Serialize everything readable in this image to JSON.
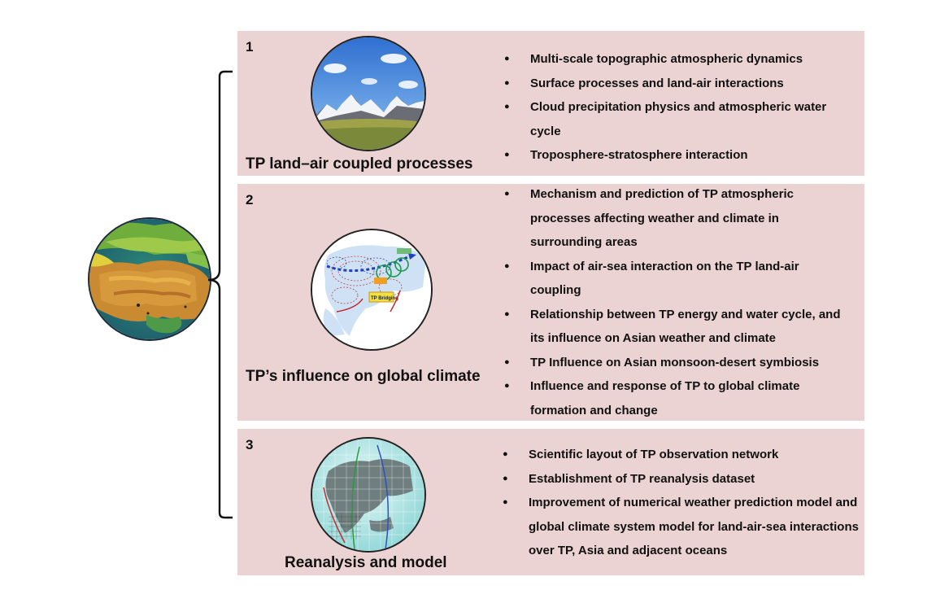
{
  "panels": [
    {
      "number": "1",
      "title": "TP land–air coupled processes",
      "bullets": [
        "Multi-scale topographic atmospheric dynamics",
        "Surface processes and land-air interactions",
        "Cloud precipitation physics and atmospheric water cycle",
        "Troposphere-stratosphere interaction"
      ]
    },
    {
      "number": "2",
      "title": "TP’s influence on global climate",
      "bullets": [
        "Mechanism and prediction of TP atmospheric processes affecting weather and climate in surrounding areas",
        "Impact of air-sea interaction on the TP land-air coupling",
        "Relationship between TP energy and water cycle, and its influence on Asian weather and climate",
        "TP Influence on Asian monsoon-desert symbiosis",
        "Influence and response of TP to global climate formation and change"
      ],
      "map_labels": {
        "bridging": "TP Bridging"
      }
    },
    {
      "number": "3",
      "title": "Reanalysis and model",
      "bullets": [
        "Scientific layout of TP observation network",
        "Establishment of TP reanalysis dataset",
        "Improvement of numerical weather prediction model and global climate system model for land-air-sea interactions over TP, Asia and adjacent oceans"
      ]
    }
  ],
  "colors": {
    "panel_bg": "#ecd3d3",
    "bracket": "#111111"
  }
}
